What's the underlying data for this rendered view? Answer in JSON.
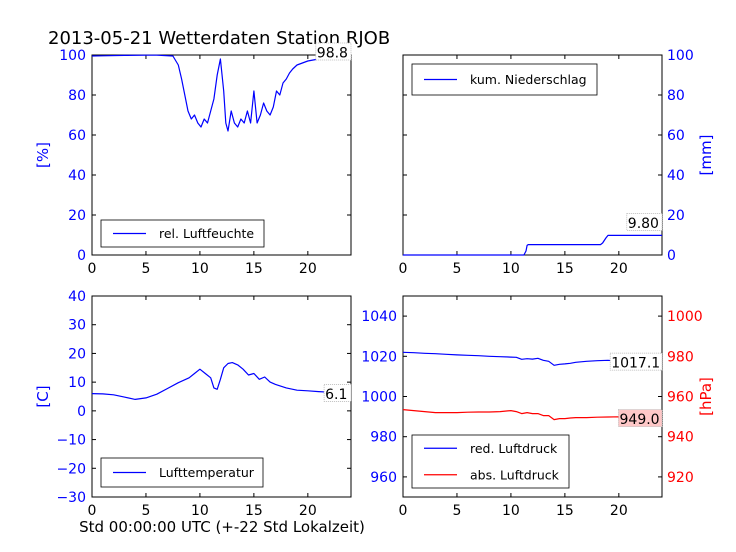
{
  "title": "2013-05-21 Wetterdaten Station RJOB",
  "xlabel": "Std 00:00:00 UTC (+-22 Std Lokalzeit)",
  "colors": {
    "blue": "#0000ff",
    "red": "#ff0000",
    "black": "#000000",
    "red_box": "#ffc8c8"
  },
  "chart_data": [
    {
      "id": "humidity",
      "type": "line",
      "ylabel": "[%]",
      "ylabel_color": "#0000ff",
      "xlim": [
        0,
        24
      ],
      "ylim": [
        0,
        100
      ],
      "xticks": [
        0,
        5,
        10,
        15,
        20
      ],
      "yticks": [
        0,
        20,
        40,
        60,
        80,
        100
      ],
      "ytick_color": "#0000ff",
      "yaxis_side": "left",
      "grid": false,
      "legend_position": "lower-left",
      "last_value_label": "98.8",
      "series": [
        {
          "name": "rel. Luftfeuchte",
          "color": "#0000ff",
          "x": [
            0,
            1,
            3,
            5,
            6,
            7.5,
            8,
            8.3,
            8.6,
            8.9,
            9.2,
            9.5,
            9.8,
            10.1,
            10.4,
            10.7,
            11,
            11.3,
            11.6,
            11.9,
            12.2,
            12.4,
            12.6,
            12.9,
            13.2,
            13.5,
            13.8,
            14.1,
            14.4,
            14.7,
            15,
            15.3,
            15.6,
            15.9,
            16.2,
            16.5,
            16.8,
            17.1,
            17.4,
            17.7,
            18,
            18.3,
            18.6,
            19,
            19.5,
            20,
            21,
            22,
            23,
            24
          ],
          "y": [
            99.5,
            99.6,
            99.8,
            99.9,
            99.9,
            99.5,
            95,
            88,
            80,
            72,
            68,
            70,
            66,
            64,
            68,
            66,
            72,
            78,
            90,
            98,
            82,
            66,
            62,
            72,
            66,
            64,
            68,
            66,
            72,
            66,
            82,
            66,
            70,
            76,
            72,
            70,
            74,
            82,
            80,
            86,
            88,
            91,
            93,
            95,
            96,
            97,
            98,
            98.6,
            98.8,
            98.8
          ]
        }
      ]
    },
    {
      "id": "precipitation",
      "type": "line",
      "ylabel": "[mm]",
      "ylabel_color": "#0000ff",
      "xlim": [
        0,
        24
      ],
      "ylim": [
        0,
        100
      ],
      "xticks": [
        0,
        5,
        10,
        15,
        20
      ],
      "yticks": [
        0,
        20,
        40,
        60,
        80,
        100
      ],
      "ytick_color": "#0000ff",
      "yaxis_side": "right",
      "grid": false,
      "legend_position": "upper-left",
      "last_value_label": "9.80",
      "series": [
        {
          "name": "kum. Niederschlag",
          "color": "#0000ff",
          "x": [
            0,
            11.2,
            11.4,
            11.5,
            11.6,
            18.3,
            18.5,
            18.8,
            19.0,
            24
          ],
          "y": [
            0,
            0,
            2,
            4.8,
            5.2,
            5.2,
            6,
            8.5,
            9.8,
            9.8
          ]
        }
      ]
    },
    {
      "id": "temperature",
      "type": "line",
      "ylabel": "[C]",
      "ylabel_color": "#0000ff",
      "xlim": [
        0,
        24
      ],
      "ylim": [
        -30,
        40
      ],
      "xticks": [
        0,
        5,
        10,
        15,
        20
      ],
      "yticks": [
        -30,
        -20,
        -10,
        0,
        10,
        20,
        30,
        40
      ],
      "ytick_color": "#0000ff",
      "yaxis_side": "left",
      "grid": false,
      "legend_position": "lower-left",
      "last_value_label": "6.1",
      "series": [
        {
          "name": "Lufttemperatur",
          "color": "#0000ff",
          "x": [
            0,
            1,
            2,
            3,
            4,
            5,
            6,
            7,
            8,
            9,
            9.5,
            10,
            10.5,
            11,
            11.3,
            11.6,
            11.9,
            12.2,
            12.6,
            13,
            13.5,
            14,
            14.5,
            15,
            15.5,
            16,
            16.5,
            17,
            18,
            19,
            20,
            21,
            22,
            23,
            24
          ],
          "y": [
            6,
            5.9,
            5.6,
            4.8,
            4,
            4.5,
            5.8,
            7.8,
            9.8,
            11.5,
            13,
            14.5,
            13,
            11.5,
            8,
            7.5,
            11,
            15,
            16.5,
            16.8,
            16,
            14.5,
            12.5,
            13,
            11,
            11.8,
            10,
            9.2,
            8,
            7.2,
            7,
            6.7,
            6.5,
            6.2,
            6.1
          ]
        }
      ]
    },
    {
      "id": "pressure",
      "type": "line",
      "ylabel": "[hPa]",
      "ylabel_color": "#ff0000",
      "xlim": [
        0,
        24
      ],
      "ylim_left": [
        950,
        1050
      ],
      "ylim_right": [
        910,
        1010
      ],
      "xticks": [
        0,
        5,
        10,
        15,
        20
      ],
      "yticks_left": [
        960,
        980,
        1000,
        1020,
        1040
      ],
      "yticks_right": [
        920,
        940,
        960,
        980,
        1000
      ],
      "ytick_color_left": "#0000ff",
      "ytick_color_right": "#ff0000",
      "grid": false,
      "legend_position": "lower-left",
      "last_value_label_left": "1017.1",
      "last_value_label_right": "949.0",
      "series": [
        {
          "name": "red. Luftdruck",
          "color": "#0000ff",
          "axis": "left",
          "x": [
            0,
            1,
            2,
            3,
            4,
            5,
            6,
            7,
            8,
            9,
            10,
            10.5,
            11,
            11.5,
            12,
            12.5,
            13,
            13.5,
            14,
            14.5,
            15,
            15.5,
            16,
            17,
            18,
            19,
            20,
            21,
            22,
            23,
            24
          ],
          "y": [
            1022,
            1021.8,
            1021.5,
            1021.3,
            1021,
            1020.7,
            1020.5,
            1020.3,
            1020,
            1019.8,
            1019.6,
            1019.5,
            1018.5,
            1018.8,
            1018.6,
            1019,
            1018,
            1017.5,
            1015.5,
            1016,
            1016.2,
            1016.5,
            1017,
            1017.5,
            1017.8,
            1018,
            1017.6,
            1017.4,
            1017.2,
            1017.1,
            1017.1
          ]
        },
        {
          "name": "abs. Luftdruck",
          "color": "#ff0000",
          "axis": "right",
          "x": [
            0,
            1,
            2,
            3,
            4,
            5,
            6,
            7,
            8,
            9,
            10,
            10.5,
            11,
            11.5,
            12,
            12.5,
            13,
            13.5,
            14,
            14.5,
            15,
            15.5,
            16,
            17,
            18,
            19,
            20,
            21,
            22,
            23,
            24
          ],
          "y": [
            953.5,
            953,
            952.5,
            952,
            952,
            952,
            952.2,
            952.3,
            952.3,
            952.5,
            953,
            952.5,
            951.5,
            952,
            951.5,
            951.5,
            950.5,
            950.5,
            948.5,
            949,
            949,
            949.3,
            949.5,
            949.5,
            949.7,
            949.8,
            949.9,
            949.8,
            949.5,
            949.2,
            949.0
          ]
        }
      ]
    }
  ]
}
